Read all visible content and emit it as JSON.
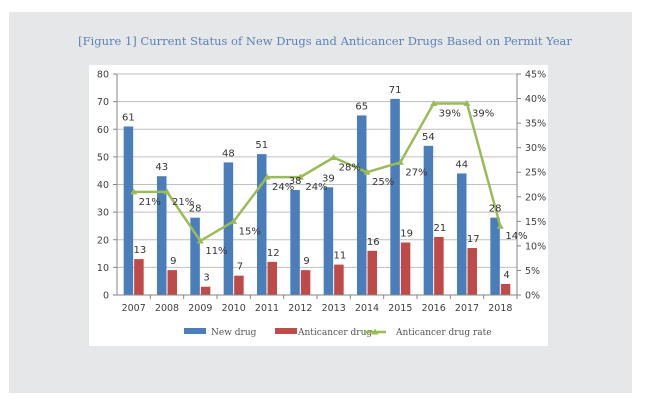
{
  "figure": {
    "title": "[Figure 1] Current Status of New Drugs and Anticancer Drugs Based on Permit Year"
  },
  "colors": {
    "new_drug": "#4a7ebb",
    "anticancer_drug": "#be4b48",
    "anticancer_rate": "#9bbb59",
    "grid": "#bfbfbf",
    "frame": "#e6e7e9",
    "title": "#5b82b8"
  },
  "chart_data": {
    "type": "bar",
    "title": "[Figure 1] Current Status of New Drugs and Anticancer Drugs Based on Permit Year",
    "xlabel": "",
    "ylabel": "",
    "categories": [
      "2007",
      "2008",
      "2009",
      "2010",
      "2011",
      "2012",
      "2013",
      "2014",
      "2015",
      "2016",
      "2017",
      "2018"
    ],
    "series": [
      {
        "name": "New drug",
        "type": "bar",
        "axis": "left",
        "values": [
          61,
          43,
          28,
          48,
          51,
          38,
          39,
          65,
          71,
          54,
          44,
          28
        ]
      },
      {
        "name": "Anticancer drug",
        "type": "bar",
        "axis": "left",
        "values": [
          13,
          9,
          3,
          7,
          12,
          9,
          11,
          16,
          19,
          21,
          17,
          4
        ]
      },
      {
        "name": "Anticancer drug rate",
        "type": "line",
        "axis": "right",
        "values": [
          21,
          21,
          11,
          15,
          24,
          24,
          28,
          25,
          27,
          39,
          39,
          14
        ],
        "labels": [
          "21%",
          "21%",
          "11%",
          "15%",
          "24%",
          "24%",
          "28%",
          "25%",
          "27%",
          "39%",
          "39%",
          "14%"
        ]
      }
    ],
    "ylim": [
      0,
      80
    ],
    "yticks": [
      "0",
      "10",
      "20",
      "30",
      "40",
      "50",
      "60",
      "70",
      "80"
    ],
    "y2lim": [
      0,
      45
    ],
    "y2ticks": [
      "0%",
      "5%",
      "10%",
      "15%",
      "20%",
      "25%",
      "30%",
      "35%",
      "40%",
      "45%"
    ],
    "grid": true,
    "legend": {
      "placement": "bottom",
      "entries": [
        "New drug",
        "Anticancer drug",
        "Anticancer drug rate"
      ]
    }
  }
}
